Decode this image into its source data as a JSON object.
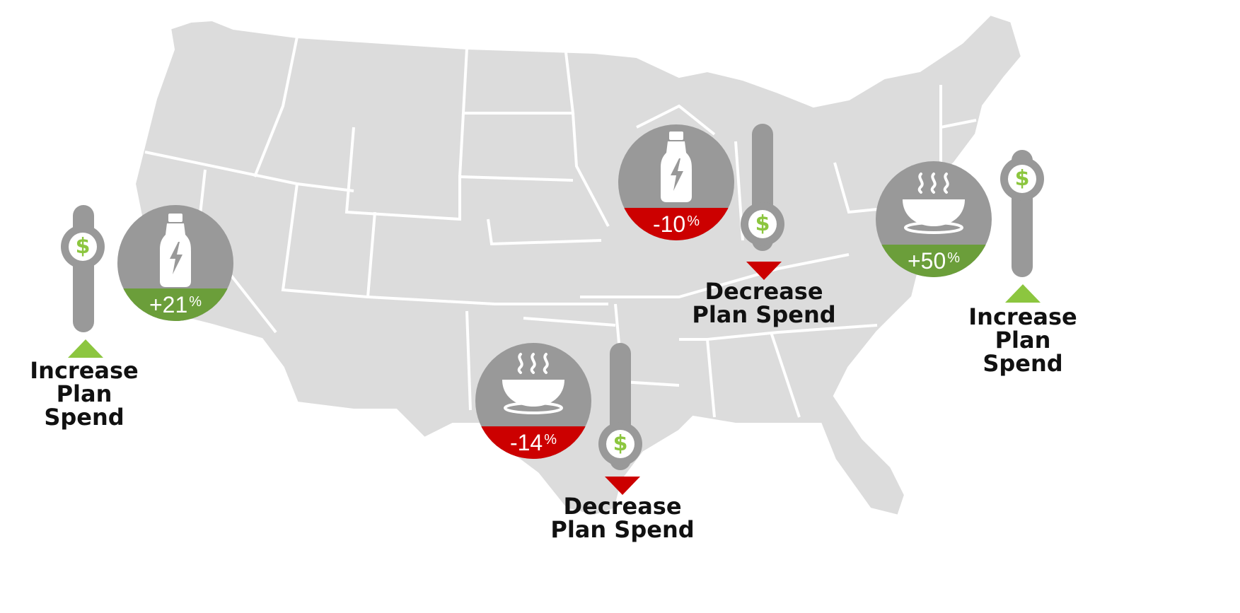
{
  "colors": {
    "map_fill": "#dcdcdc",
    "map_border": "#ffffff",
    "circle_gray": "#999999",
    "positive_green": "#6b9e3a",
    "negative_red": "#cc0000",
    "arrow_green": "#8cc63f",
    "dollar_green": "#8cc63f"
  },
  "markers": [
    {
      "id": "west",
      "icon": "energy-drink-bottle-icon",
      "change_value": "+21",
      "change_unit": "%",
      "direction": "increase",
      "slider_symbol": "$",
      "caption": [
        "Increase",
        "Plan",
        "Spend"
      ]
    },
    {
      "id": "midwest",
      "icon": "energy-drink-bottle-icon",
      "change_value": "-10",
      "change_unit": "%",
      "direction": "decrease",
      "slider_symbol": "$",
      "caption": [
        "Decrease",
        "Plan Spend"
      ]
    },
    {
      "id": "south",
      "icon": "soup-bowl-icon",
      "change_value": "-14",
      "change_unit": "%",
      "direction": "decrease",
      "slider_symbol": "$",
      "caption": [
        "Decrease",
        "Plan Spend"
      ]
    },
    {
      "id": "east",
      "icon": "soup-bowl-icon",
      "change_value": "+50",
      "change_unit": "%",
      "direction": "increase",
      "slider_symbol": "$",
      "caption": [
        "Increase",
        "Plan",
        "Spend"
      ]
    }
  ]
}
